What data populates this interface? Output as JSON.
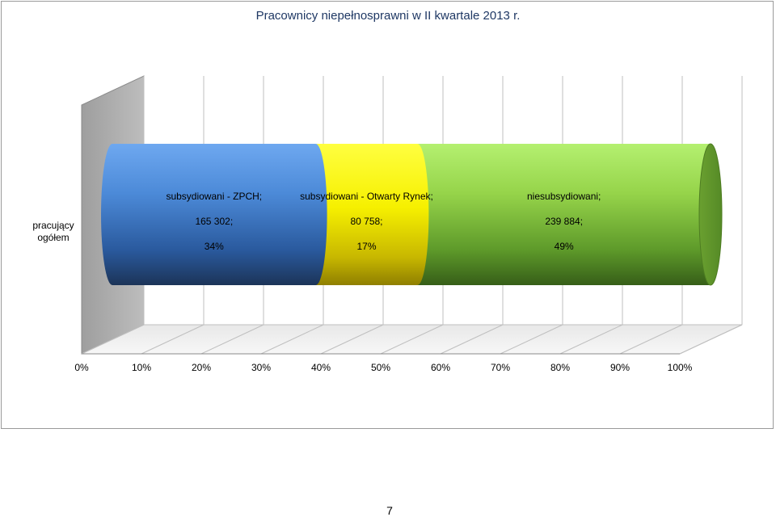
{
  "chart_data": {
    "type": "bar",
    "orientation": "horizontal",
    "stacked": "percent",
    "style": "3d-cylinder",
    "title": "Pracownicy niepełnosprawni w II kwartale 2013 r.",
    "categories": [
      "pracujący ogółem"
    ],
    "series": [
      {
        "name": "subsydiowani - ZPCH",
        "values": [
          165302
        ],
        "value_label": "165 302;",
        "percent_label": "34%",
        "percent": 34,
        "color": "#4a86d8"
      },
      {
        "name": "subsydiowani - Otwarty Rynek",
        "values": [
          80758
        ],
        "value_label": "80 758;",
        "percent_label": "17%",
        "percent": 17,
        "color": "#ffff00"
      },
      {
        "name": "niesubsydiowani",
        "values": [
          239884
        ],
        "value_label": "239 884;",
        "percent_label": "49%",
        "percent": 49,
        "color": "#8fcc3c"
      }
    ],
    "xlim": [
      0,
      100
    ],
    "x_ticks": [
      "0%",
      "10%",
      "20%",
      "30%",
      "40%",
      "50%",
      "60%",
      "70%",
      "80%",
      "90%",
      "100%"
    ],
    "grid": true,
    "legend": "none"
  },
  "page": {
    "number": "7"
  }
}
